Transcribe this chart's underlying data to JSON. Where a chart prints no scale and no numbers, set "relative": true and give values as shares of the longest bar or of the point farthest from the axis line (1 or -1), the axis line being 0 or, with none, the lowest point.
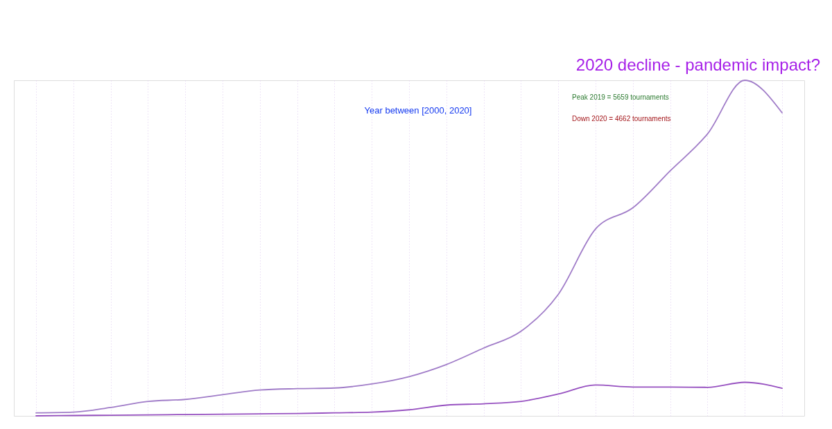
{
  "chart_data": {
    "type": "line",
    "title": "2020 decline - pandemic impact?",
    "subtitle": "Year between [2000, 2020]",
    "annotations": [
      "Peak 2019 = 5659 tournaments",
      "Down 2020 = 4662 tournaments"
    ],
    "categories": [
      null,
      null,
      null,
      null,
      null,
      null,
      null,
      null,
      null,
      null,
      null,
      null,
      null,
      null,
      null,
      null,
      null,
      null,
      null,
      null,
      null
    ],
    "relative": true,
    "series": [
      {
        "color": "#a07cc8",
        "values": [
          0.009,
          0.011,
          0.025,
          0.043,
          0.049,
          0.063,
          0.077,
          0.081,
          0.083,
          0.095,
          0.117,
          0.153,
          0.202,
          0.252,
          0.362,
          0.557,
          0.62,
          0.73,
          0.84,
          1,
          0.903
        ]
      },
      {
        "color": "#9650c0",
        "values": [
          0,
          0.001,
          0.002,
          0.003,
          0.004,
          0.005,
          0.006,
          0.007,
          0.009,
          0.011,
          0.018,
          0.032,
          0.036,
          0.043,
          0.065,
          0.092,
          0.086,
          0.086,
          0.085,
          0.1,
          0.082
        ]
      }
    ],
    "grid": "x"
  }
}
